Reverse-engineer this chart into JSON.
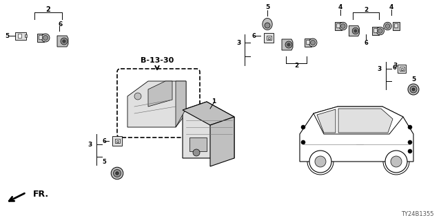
{
  "bg_color": "#ffffff",
  "diagram_code": "TY24B1355",
  "ref_label": "B-13-30",
  "fr_label": "FR.",
  "lw": 0.7,
  "gray1": "#e0e0e0",
  "gray2": "#c0c0c0",
  "gray3": "#909090",
  "dark": "#404040"
}
